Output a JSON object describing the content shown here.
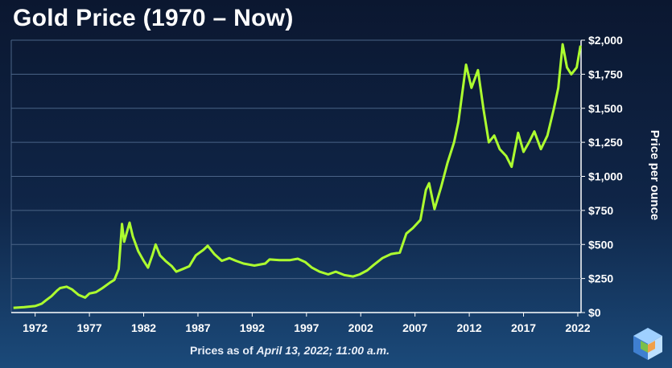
{
  "title": "Gold Price (1970 – Now)",
  "footnote": {
    "prefix": "Prices as of ",
    "date_time": "April 13, 2022; 11:00 a.m."
  },
  "colors": {
    "line": "#adff2f",
    "axis": "#ffffff",
    "grid": "#4a6487"
  },
  "chart_data": {
    "type": "line",
    "title": "Gold Price (1970 – Now)",
    "xlabel": "",
    "ylabel": "Price per ounce",
    "xlim": [
      1969.8,
      2022.3
    ],
    "ylim": [
      0,
      2000
    ],
    "xticks": [
      1972,
      1977,
      1982,
      1987,
      1992,
      1997,
      2002,
      2007,
      2012,
      2017,
      2022
    ],
    "yticks": [
      0,
      250,
      500,
      750,
      1000,
      1250,
      1500,
      1750,
      2000
    ],
    "ytick_labels": [
      "$0",
      "$250",
      "$500",
      "$750",
      "$1,000",
      "$1,250",
      "$1,500",
      "$1,750",
      "$2,000"
    ],
    "grid": "horizontal",
    "series": [
      {
        "values": [
          [
            1970,
            35
          ],
          [
            1971,
            40
          ],
          [
            1972,
            48
          ],
          [
            1972.6,
            65
          ],
          [
            1973,
            90
          ],
          [
            1973.5,
            120
          ],
          [
            1974,
            160
          ],
          [
            1974.3,
            180
          ],
          [
            1974.9,
            190
          ],
          [
            1975.4,
            170
          ],
          [
            1976,
            130
          ],
          [
            1976.6,
            110
          ],
          [
            1977,
            140
          ],
          [
            1977.6,
            150
          ],
          [
            1978.2,
            180
          ],
          [
            1978.9,
            220
          ],
          [
            1979.3,
            240
          ],
          [
            1979.7,
            320
          ],
          [
            1980.0,
            650
          ],
          [
            1980.2,
            520
          ],
          [
            1980.7,
            660
          ],
          [
            1981.0,
            560
          ],
          [
            1981.5,
            450
          ],
          [
            1982.0,
            380
          ],
          [
            1982.4,
            330
          ],
          [
            1982.8,
            420
          ],
          [
            1983.1,
            500
          ],
          [
            1983.5,
            420
          ],
          [
            1984,
            380
          ],
          [
            1984.6,
            340
          ],
          [
            1985,
            300
          ],
          [
            1985.6,
            320
          ],
          [
            1986.2,
            340
          ],
          [
            1986.8,
            420
          ],
          [
            1987.5,
            460
          ],
          [
            1987.9,
            490
          ],
          [
            1988.5,
            430
          ],
          [
            1989.2,
            380
          ],
          [
            1989.9,
            400
          ],
          [
            1990.5,
            380
          ],
          [
            1991.2,
            360
          ],
          [
            1992.2,
            345
          ],
          [
            1993.2,
            360
          ],
          [
            1993.6,
            390
          ],
          [
            1994.5,
            385
          ],
          [
            1995.5,
            385
          ],
          [
            1996.2,
            395
          ],
          [
            1996.9,
            370
          ],
          [
            1997.5,
            330
          ],
          [
            1998.2,
            300
          ],
          [
            1999.0,
            280
          ],
          [
            1999.7,
            300
          ],
          [
            2000.5,
            275
          ],
          [
            2001.3,
            265
          ],
          [
            2001.9,
            280
          ],
          [
            2002.6,
            310
          ],
          [
            2003.2,
            350
          ],
          [
            2004,
            400
          ],
          [
            2004.8,
            430
          ],
          [
            2005.6,
            440
          ],
          [
            2006.2,
            580
          ],
          [
            2006.8,
            620
          ],
          [
            2007.5,
            680
          ],
          [
            2008.0,
            900
          ],
          [
            2008.3,
            950
          ],
          [
            2008.8,
            760
          ],
          [
            2009.4,
            920
          ],
          [
            2010,
            1100
          ],
          [
            2010.6,
            1250
          ],
          [
            2011.0,
            1400
          ],
          [
            2011.7,
            1820
          ],
          [
            2012.2,
            1650
          ],
          [
            2012.8,
            1780
          ],
          [
            2013.3,
            1500
          ],
          [
            2013.8,
            1250
          ],
          [
            2014.3,
            1300
          ],
          [
            2014.8,
            1200
          ],
          [
            2015.4,
            1150
          ],
          [
            2015.9,
            1070
          ],
          [
            2016.5,
            1320
          ],
          [
            2017.0,
            1180
          ],
          [
            2017.5,
            1250
          ],
          [
            2018.0,
            1330
          ],
          [
            2018.6,
            1200
          ],
          [
            2019.2,
            1300
          ],
          [
            2019.8,
            1500
          ],
          [
            2020.2,
            1650
          ],
          [
            2020.6,
            1970
          ],
          [
            2021.0,
            1800
          ],
          [
            2021.4,
            1750
          ],
          [
            2021.9,
            1800
          ],
          [
            2022.25,
            1960
          ]
        ]
      }
    ]
  }
}
